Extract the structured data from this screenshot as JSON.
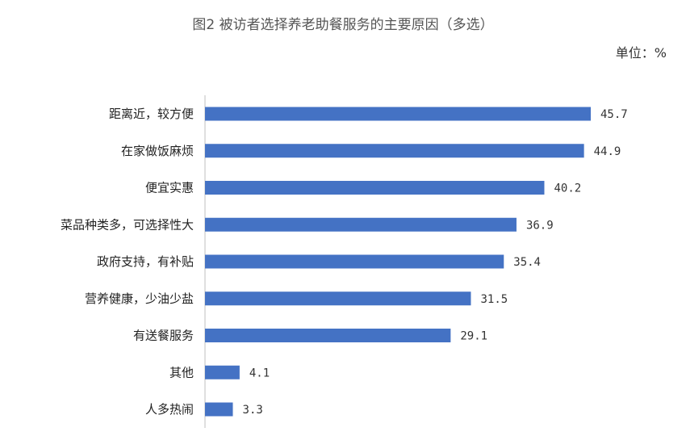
{
  "chart_data": {
    "type": "bar",
    "orientation": "horizontal",
    "title": "图2 被访者选择养老助餐服务的主要原因（多选）",
    "unit": "单位：%",
    "categories": [
      "距离近，较方便",
      "在家做饭麻烦",
      "便宜实惠",
      "菜品种类多，可选择性大",
      "政府支持，有补贴",
      "营养健康，少油少盐",
      "有送餐服务",
      "其他",
      "人多热闹"
    ],
    "values": [
      45.7,
      44.9,
      40.2,
      36.9,
      35.4,
      31.5,
      29.1,
      4.1,
      3.3
    ],
    "value_labels": [
      "45.7",
      "44.9",
      "40.2",
      "36.9",
      "35.4",
      "31.5",
      "29.1",
      "4.1",
      "3.3"
    ],
    "xlim": [
      0,
      50
    ],
    "grid": false,
    "legend": "none",
    "bar_color": "#4472C4"
  }
}
